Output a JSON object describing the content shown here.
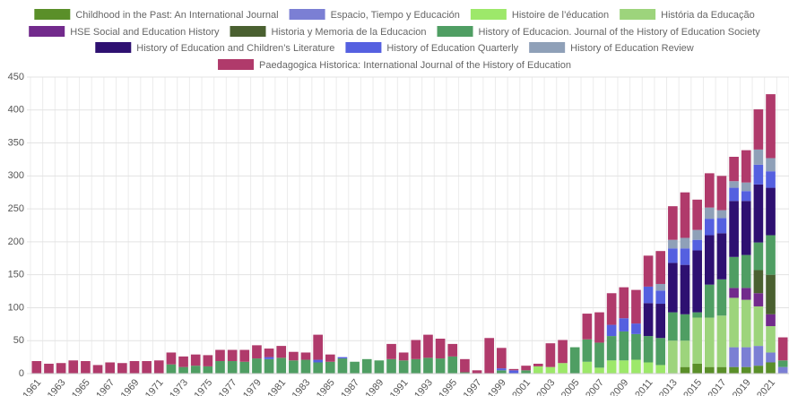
{
  "chart_data": {
    "type": "stacked_bar",
    "categories": [
      "1961",
      null,
      "1963",
      null,
      "1965",
      null,
      "1967",
      null,
      "1969",
      null,
      "1971",
      null,
      "1973",
      null,
      "1975",
      null,
      "1977",
      null,
      "1979",
      null,
      "1981",
      null,
      "1983",
      null,
      "1985",
      null,
      "1987",
      null,
      "1989",
      null,
      "1991",
      null,
      "1993",
      null,
      "1995",
      null,
      "1997",
      null,
      "1999",
      null,
      "2001",
      null,
      "2003",
      null,
      "2005",
      null,
      "2007",
      null,
      "2009",
      null,
      "2011",
      null,
      "2013",
      null,
      "2015",
      null,
      "2017",
      null,
      "2019",
      null,
      "2021",
      null
    ],
    "series": [
      {
        "name": "Childhood in the Past: An International Journal",
        "color": "#5a8f29",
        "values": [
          0,
          0,
          0,
          0,
          0,
          0,
          0,
          0,
          0,
          0,
          0,
          0,
          0,
          0,
          0,
          0,
          0,
          0,
          0,
          0,
          0,
          0,
          0,
          0,
          0,
          0,
          0,
          0,
          0,
          0,
          0,
          0,
          0,
          0,
          0,
          0,
          0,
          0,
          0,
          0,
          0,
          0,
          0,
          0,
          0,
          0,
          0,
          0,
          0,
          0,
          0,
          0,
          0,
          10,
          15,
          10,
          10,
          10,
          10,
          12,
          17,
          0
        ]
      },
      {
        "name": "Espacio, Tiempo y Educación",
        "color": "#7b7fd4",
        "values": [
          0,
          0,
          0,
          0,
          0,
          0,
          0,
          0,
          0,
          0,
          0,
          0,
          0,
          0,
          0,
          0,
          0,
          0,
          0,
          0,
          0,
          0,
          0,
          0,
          0,
          0,
          0,
          0,
          0,
          0,
          0,
          0,
          0,
          0,
          0,
          0,
          0,
          0,
          0,
          0,
          0,
          0,
          0,
          0,
          0,
          0,
          0,
          0,
          0,
          0,
          0,
          0,
          0,
          0,
          0,
          0,
          0,
          30,
          30,
          30,
          15,
          10
        ]
      },
      {
        "name": "Histoire de l’éducation",
        "color": "#9de86a",
        "values": [
          0,
          0,
          0,
          0,
          0,
          0,
          0,
          0,
          0,
          0,
          0,
          0,
          0,
          0,
          0,
          0,
          0,
          0,
          0,
          0,
          0,
          0,
          0,
          0,
          0,
          0,
          0,
          0,
          0,
          0,
          0,
          0,
          0,
          0,
          0,
          0,
          0,
          0,
          0,
          0,
          0,
          11,
          10,
          16,
          0,
          18,
          9,
          20,
          20,
          21,
          17,
          13,
          0,
          0,
          0,
          0,
          0,
          0,
          0,
          0,
          0,
          0
        ]
      },
      {
        "name": "História da Educação",
        "color": "#9dd47c",
        "values": [
          0,
          0,
          0,
          0,
          0,
          0,
          0,
          0,
          0,
          0,
          0,
          0,
          0,
          0,
          0,
          0,
          0,
          0,
          0,
          0,
          0,
          0,
          0,
          0,
          0,
          0,
          0,
          0,
          0,
          0,
          0,
          0,
          0,
          0,
          0,
          0,
          0,
          0,
          0,
          0,
          0,
          0,
          0,
          0,
          0,
          0,
          0,
          0,
          0,
          0,
          0,
          0,
          50,
          40,
          70,
          75,
          78,
          75,
          72,
          60,
          40,
          0
        ]
      },
      {
        "name": "HSE Social and Education History",
        "color": "#722a8c",
        "values": [
          0,
          0,
          0,
          0,
          0,
          0,
          0,
          0,
          0,
          0,
          0,
          0,
          0,
          0,
          0,
          0,
          0,
          0,
          0,
          0,
          0,
          0,
          0,
          0,
          0,
          0,
          0,
          0,
          0,
          0,
          0,
          0,
          0,
          0,
          0,
          0,
          0,
          0,
          0,
          0,
          0,
          0,
          0,
          0,
          0,
          0,
          0,
          0,
          0,
          0,
          0,
          0,
          0,
          0,
          0,
          0,
          0,
          15,
          18,
          20,
          18,
          0
        ]
      },
      {
        "name": "Historia y Memoria de la Educacion",
        "color": "#4a6030",
        "values": [
          0,
          0,
          0,
          0,
          0,
          0,
          0,
          0,
          0,
          0,
          0,
          0,
          0,
          0,
          0,
          0,
          0,
          0,
          0,
          0,
          0,
          0,
          0,
          0,
          0,
          0,
          0,
          0,
          0,
          0,
          0,
          0,
          0,
          0,
          0,
          0,
          0,
          0,
          0,
          0,
          0,
          0,
          0,
          0,
          0,
          0,
          0,
          0,
          0,
          0,
          0,
          0,
          0,
          0,
          0,
          0,
          0,
          0,
          0,
          35,
          60,
          0
        ]
      },
      {
        "name": "History of Educacion. Journal of the History of Education Society",
        "color": "#4f9e63",
        "values": [
          0,
          0,
          0,
          0,
          0,
          0,
          0,
          0,
          0,
          0,
          0,
          14,
          10,
          12,
          11,
          19,
          19,
          18,
          23,
          22,
          24,
          20,
          21,
          17,
          18,
          23,
          18,
          22,
          20,
          22,
          20,
          22,
          24,
          23,
          26,
          2,
          0,
          0,
          5,
          0,
          5,
          0,
          0,
          0,
          40,
          34,
          38,
          37,
          44,
          39,
          40,
          41,
          43,
          40,
          8,
          50,
          55,
          47,
          50,
          42,
          60,
          10
        ]
      },
      {
        "name": "History of Education and Children’s Literature",
        "color": "#2e1071",
        "values": [
          0,
          0,
          0,
          0,
          0,
          0,
          0,
          0,
          0,
          0,
          0,
          0,
          0,
          0,
          0,
          0,
          0,
          0,
          0,
          0,
          0,
          0,
          0,
          0,
          0,
          0,
          0,
          0,
          0,
          0,
          0,
          0,
          0,
          0,
          0,
          0,
          0,
          0,
          0,
          0,
          0,
          0,
          0,
          0,
          0,
          0,
          0,
          0,
          0,
          0,
          50,
          52,
          75,
          75,
          94,
          75,
          70,
          85,
          82,
          88,
          72,
          0
        ]
      },
      {
        "name": "History of Education Quarterly",
        "color": "#5560e0",
        "values": [
          0,
          0,
          0,
          0,
          0,
          0,
          0,
          0,
          0,
          0,
          0,
          0,
          0,
          0,
          0,
          0,
          0,
          0,
          0,
          3,
          0,
          0,
          0,
          4,
          0,
          2,
          0,
          0,
          0,
          0,
          0,
          0,
          0,
          0,
          0,
          0,
          0,
          0,
          3,
          5,
          0,
          0,
          0,
          0,
          0,
          0,
          0,
          17,
          20,
          16,
          25,
          20,
          22,
          25,
          16,
          25,
          23,
          20,
          15,
          30,
          25,
          0
        ]
      },
      {
        "name": "History of Education Review",
        "color": "#8fa0b8",
        "values": [
          0,
          0,
          0,
          0,
          0,
          0,
          0,
          0,
          0,
          0,
          0,
          0,
          0,
          0,
          0,
          0,
          0,
          0,
          0,
          0,
          0,
          0,
          0,
          0,
          0,
          0,
          0,
          0,
          0,
          0,
          0,
          0,
          0,
          0,
          0,
          0,
          0,
          0,
          0,
          0,
          0,
          0,
          0,
          0,
          0,
          0,
          0,
          0,
          0,
          0,
          0,
          10,
          13,
          16,
          15,
          17,
          12,
          10,
          13,
          23,
          20,
          0
        ]
      },
      {
        "name": "Paedagogica Historica: International Journal of the History of Education",
        "color": "#b03a6b",
        "values": [
          19,
          15,
          16,
          20,
          19,
          13,
          17,
          16,
          19,
          19,
          20,
          18,
          16,
          17,
          17,
          17,
          17,
          18,
          20,
          13,
          18,
          13,
          11,
          38,
          11,
          0,
          0,
          0,
          0,
          23,
          12,
          29,
          35,
          30,
          19,
          20,
          5,
          54,
          31,
          2,
          7,
          4,
          36,
          35,
          0,
          39,
          46,
          48,
          47,
          51,
          47,
          50,
          51,
          69,
          46,
          52,
          52,
          37,
          49,
          61,
          97,
          35
        ]
      }
    ],
    "ylim": [
      0,
      450
    ],
    "yticks": [
      0,
      50,
      100,
      150,
      200,
      250,
      300,
      350,
      400,
      450
    ],
    "grid": true,
    "legend": "top"
  }
}
